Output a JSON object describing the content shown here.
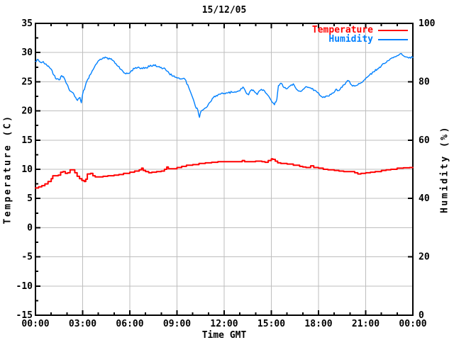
{
  "chart_data": {
    "type": "line",
    "title": "15/12/05",
    "xlabel": "Time GMT",
    "ylabel_left": "Temperature (C)",
    "ylabel_right": "Humidity (%)",
    "grid": true,
    "colors": {
      "background": "#ffffff",
      "border": "#000000",
      "grid": "#bebebe",
      "text": "#000000",
      "temperature": "#ff0000",
      "humidity": "#0080ff"
    },
    "x_axis": {
      "range_hours": [
        0,
        24
      ],
      "major_step_hours": 3,
      "minor_step_hours": 1,
      "tick_labels": [
        "00:00",
        "03:00",
        "06:00",
        "09:00",
        "12:00",
        "15:00",
        "18:00",
        "21:00",
        "00:00"
      ]
    },
    "y_left_axis": {
      "range": [
        -15,
        35
      ],
      "major_step": 5,
      "minor_step": 2.5,
      "tick_labels": [
        "35",
        "30",
        "25",
        "20",
        "15",
        "10",
        "5",
        "0",
        "-5",
        "-10",
        "-15"
      ]
    },
    "y_right_axis": {
      "range": [
        0,
        100
      ],
      "major_step": 20,
      "tick_labels": [
        "100",
        "80",
        "60",
        "40",
        "20",
        "0"
      ]
    },
    "legend": {
      "position": "top-right-inside",
      "entries": [
        {
          "label": "Temperature",
          "color": "#ff0000"
        },
        {
          "label": "Humidity",
          "color": "#0080ff"
        }
      ]
    },
    "series": [
      {
        "name": "Temperature",
        "axis": "left",
        "unit": "C",
        "color": "#ff0000",
        "line_style": "steps",
        "stroke_width": 2,
        "points": [
          [
            0,
            6.8
          ],
          [
            0.2,
            7
          ],
          [
            0.4,
            7.2
          ],
          [
            0.6,
            7.5
          ],
          [
            0.8,
            7.9
          ],
          [
            1,
            8.4
          ],
          [
            1.1,
            8.9
          ],
          [
            1.3,
            8.9
          ],
          [
            1.45,
            9
          ],
          [
            1.6,
            9.5
          ],
          [
            1.75,
            9.6
          ],
          [
            1.9,
            9.3
          ],
          [
            2.05,
            9.4
          ],
          [
            2.2,
            9.9
          ],
          [
            2.35,
            9.9
          ],
          [
            2.5,
            9.4
          ],
          [
            2.65,
            8.8
          ],
          [
            2.8,
            8.4
          ],
          [
            2.95,
            8.1
          ],
          [
            3.1,
            7.9
          ],
          [
            3.2,
            8.3
          ],
          [
            3.3,
            9.2
          ],
          [
            3.5,
            9.3
          ],
          [
            3.65,
            8.9
          ],
          [
            3.8,
            8.7
          ],
          [
            4,
            8.7
          ],
          [
            4.3,
            8.8
          ],
          [
            4.6,
            8.9
          ],
          [
            5,
            9
          ],
          [
            5.3,
            9.1
          ],
          [
            5.6,
            9.3
          ],
          [
            6,
            9.5
          ],
          [
            6.3,
            9.7
          ],
          [
            6.6,
            9.9
          ],
          [
            6.75,
            10.2
          ],
          [
            6.85,
            9.8
          ],
          [
            7,
            9.6
          ],
          [
            7.2,
            9.4
          ],
          [
            7.4,
            9.5
          ],
          [
            7.7,
            9.6
          ],
          [
            8,
            9.7
          ],
          [
            8.2,
            10
          ],
          [
            8.35,
            10.4
          ],
          [
            8.45,
            10.1
          ],
          [
            8.7,
            10.1
          ],
          [
            9,
            10.3
          ],
          [
            9.3,
            10.5
          ],
          [
            9.6,
            10.7
          ],
          [
            10,
            10.8
          ],
          [
            10.4,
            11
          ],
          [
            10.8,
            11.1
          ],
          [
            11.2,
            11.2
          ],
          [
            11.6,
            11.3
          ],
          [
            12,
            11.3
          ],
          [
            12.5,
            11.3
          ],
          [
            13,
            11.3
          ],
          [
            13.15,
            11.5
          ],
          [
            13.3,
            11.3
          ],
          [
            13.6,
            11.3
          ],
          [
            14,
            11.4
          ],
          [
            14.4,
            11.3
          ],
          [
            14.6,
            11.2
          ],
          [
            14.8,
            11.5
          ],
          [
            15,
            11.8
          ],
          [
            15.1,
            11.7
          ],
          [
            15.25,
            11.4
          ],
          [
            15.4,
            11.1
          ],
          [
            15.6,
            11
          ],
          [
            16,
            10.9
          ],
          [
            16.4,
            10.7
          ],
          [
            16.8,
            10.5
          ],
          [
            17,
            10.4
          ],
          [
            17.2,
            10.3
          ],
          [
            17.5,
            10.6
          ],
          [
            17.7,
            10.3
          ],
          [
            18,
            10.2
          ],
          [
            18.3,
            10
          ],
          [
            18.6,
            9.9
          ],
          [
            19,
            9.8
          ],
          [
            19.3,
            9.7
          ],
          [
            19.6,
            9.6
          ],
          [
            20,
            9.6
          ],
          [
            20.3,
            9.4
          ],
          [
            20.5,
            9.2
          ],
          [
            20.7,
            9.3
          ],
          [
            21,
            9.4
          ],
          [
            21.3,
            9.5
          ],
          [
            21.6,
            9.6
          ],
          [
            22,
            9.8
          ],
          [
            22.3,
            9.9
          ],
          [
            22.6,
            10
          ],
          [
            23,
            10.2
          ],
          [
            23.4,
            10.25
          ],
          [
            23.8,
            10.3
          ],
          [
            24,
            10.3
          ]
        ]
      },
      {
        "name": "Humidity",
        "axis": "right",
        "unit": "%",
        "color": "#0080ff",
        "line_style": "noisy",
        "stroke_width": 1.4,
        "noise_amplitude_pct": 0.7,
        "points": [
          [
            0,
            87
          ],
          [
            0.17,
            87.6
          ],
          [
            0.33,
            86.6
          ],
          [
            0.5,
            86.9
          ],
          [
            0.67,
            86.1
          ],
          [
            0.83,
            85.4
          ],
          [
            1,
            84.3
          ],
          [
            1.17,
            82.3
          ],
          [
            1.33,
            80.9
          ],
          [
            1.5,
            80.6
          ],
          [
            1.67,
            82.1
          ],
          [
            1.83,
            81.2
          ],
          [
            2,
            79.2
          ],
          [
            2.17,
            77
          ],
          [
            2.33,
            76.4
          ],
          [
            2.5,
            74.9
          ],
          [
            2.67,
            73.6
          ],
          [
            2.83,
            74.6
          ],
          [
            2.92,
            72.8
          ],
          [
            3,
            75.8
          ],
          [
            3.17,
            78.6
          ],
          [
            3.33,
            80.9
          ],
          [
            3.5,
            82.5
          ],
          [
            3.67,
            84.2
          ],
          [
            3.83,
            85.9
          ],
          [
            4,
            87.2
          ],
          [
            4.25,
            87.9
          ],
          [
            4.5,
            88.2
          ],
          [
            4.75,
            87.8
          ],
          [
            5,
            87
          ],
          [
            5.25,
            85.3
          ],
          [
            5.5,
            84
          ],
          [
            5.75,
            82.7
          ],
          [
            5.92,
            82.9
          ],
          [
            6.1,
            83.8
          ],
          [
            6.3,
            84.5
          ],
          [
            6.5,
            84.9
          ],
          [
            6.75,
            84.7
          ],
          [
            7,
            84.9
          ],
          [
            7.25,
            85.2
          ],
          [
            7.5,
            85.8
          ],
          [
            7.75,
            85.2
          ],
          [
            8,
            84.9
          ],
          [
            8.25,
            84.4
          ],
          [
            8.5,
            82.9
          ],
          [
            8.75,
            81.9
          ],
          [
            9,
            81.3
          ],
          [
            9.25,
            81
          ],
          [
            9.5,
            80.9
          ],
          [
            9.75,
            78
          ],
          [
            10,
            74.5
          ],
          [
            10.17,
            71.6
          ],
          [
            10.33,
            70.2
          ],
          [
            10.43,
            67.8
          ],
          [
            10.53,
            69.9
          ],
          [
            10.67,
            70.4
          ],
          [
            10.83,
            71.1
          ],
          [
            11,
            72.3
          ],
          [
            11.25,
            74.3
          ],
          [
            11.5,
            75.3
          ],
          [
            11.75,
            75.7
          ],
          [
            12,
            76
          ],
          [
            12.25,
            76.2
          ],
          [
            12.5,
            76.4
          ],
          [
            12.75,
            76.4
          ],
          [
            13,
            76.9
          ],
          [
            13.2,
            78.2
          ],
          [
            13.4,
            76.2
          ],
          [
            13.55,
            75.5
          ],
          [
            13.75,
            77.3
          ],
          [
            13.9,
            76.8
          ],
          [
            14.1,
            75.6
          ],
          [
            14.3,
            77.1
          ],
          [
            14.5,
            77.2
          ],
          [
            14.7,
            75.9
          ],
          [
            14.9,
            74.4
          ],
          [
            15,
            73.5
          ],
          [
            15.2,
            72.1
          ],
          [
            15.35,
            74
          ],
          [
            15.45,
            78.7
          ],
          [
            15.6,
            79.5
          ],
          [
            15.75,
            78.3
          ],
          [
            16,
            77.6
          ],
          [
            16.2,
            78.6
          ],
          [
            16.4,
            79.3
          ],
          [
            16.6,
            77.4
          ],
          [
            16.8,
            76.8
          ],
          [
            17,
            77.3
          ],
          [
            17.25,
            78.3
          ],
          [
            17.5,
            77.9
          ],
          [
            17.75,
            77.1
          ],
          [
            18,
            76.2
          ],
          [
            18.2,
            74.9
          ],
          [
            18.4,
            74.6
          ],
          [
            18.6,
            75.1
          ],
          [
            18.8,
            75.6
          ],
          [
            19,
            76.4
          ],
          [
            19.1,
            77.4
          ],
          [
            19.25,
            77
          ],
          [
            19.5,
            78.1
          ],
          [
            19.75,
            79.8
          ],
          [
            19.9,
            80.4
          ],
          [
            20.1,
            78.9
          ],
          [
            20.3,
            78.5
          ],
          [
            20.5,
            78.9
          ],
          [
            20.75,
            79.7
          ],
          [
            21,
            81.2
          ],
          [
            21.25,
            82.3
          ],
          [
            21.5,
            83.4
          ],
          [
            21.75,
            84.4
          ],
          [
            22,
            85.5
          ],
          [
            22.25,
            86.4
          ],
          [
            22.5,
            87.4
          ],
          [
            22.75,
            88.2
          ],
          [
            23,
            88.9
          ],
          [
            23.2,
            89.6
          ],
          [
            23.4,
            88.9
          ],
          [
            23.6,
            88.5
          ],
          [
            23.8,
            88.4
          ],
          [
            24,
            88.3
          ]
        ]
      }
    ]
  }
}
